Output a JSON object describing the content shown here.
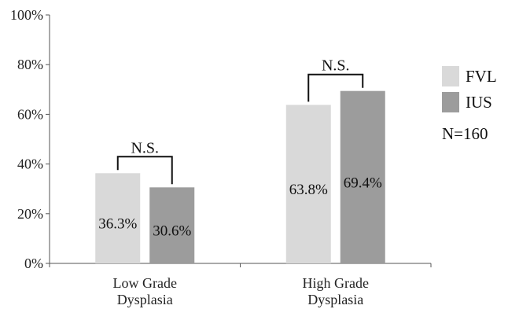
{
  "chart_data": {
    "type": "bar",
    "categories": [
      [
        "Low Grade",
        "Dysplasia"
      ],
      [
        "High Grade",
        "Dysplasia"
      ]
    ],
    "series": [
      {
        "name": "FVL",
        "values": [
          36.3,
          63.8
        ],
        "labels": [
          "36.3%",
          "63.8%"
        ],
        "color": "#d9d9d9"
      },
      {
        "name": "IUS",
        "values": [
          30.6,
          69.4
        ],
        "labels": [
          "30.6%",
          "69.4%"
        ],
        "color": "#9c9c9c"
      }
    ],
    "ylim": [
      0,
      100
    ],
    "yticks": [
      "0%",
      "20%",
      "40%",
      "60%",
      "80%",
      "100%"
    ],
    "significance": [
      "N.S.",
      "N.S."
    ],
    "annotation": "N=160",
    "legend_position": "right",
    "grid": false
  }
}
